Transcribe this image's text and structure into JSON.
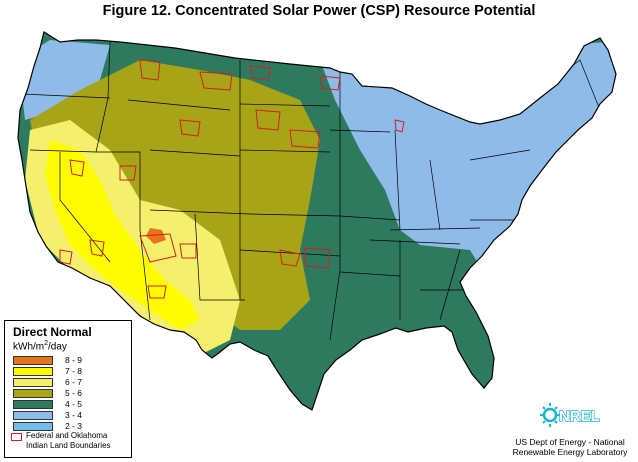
{
  "figure": {
    "title": "Figure 12.  Concentrated Solar Power (CSP) Resource Potential"
  },
  "map": {
    "colors": {
      "c89": "#e8731e",
      "c78": "#fffb00",
      "c67": "#f4f06e",
      "c56": "#a8a418",
      "c45": "#2d7a5e",
      "c34": "#8fbbe8",
      "c23": "#6fbde8",
      "ocean": "#ffffff",
      "boundary": "#d21f1f",
      "border": "#000000"
    }
  },
  "legend": {
    "title": "Direct Normal",
    "unit_prefix": "kWh/m",
    "unit_sup": "2",
    "unit_suffix": "/day",
    "items": [
      {
        "label": "8 - 9",
        "color": "#e8731e"
      },
      {
        "label": "7 - 8",
        "color": "#fffb00"
      },
      {
        "label": "6 - 7",
        "color": "#f4f06e"
      },
      {
        "label": "5 - 6",
        "color": "#a8a418"
      },
      {
        "label": "4 - 5",
        "color": "#2d7a5e"
      },
      {
        "label": "3 - 4",
        "color": "#8fbbe8"
      },
      {
        "label": "2 - 3",
        "color": "#6fbde8"
      }
    ],
    "boundary_label_1": "Federal and Oklahoma",
    "boundary_label_2": "Indian Land Boundaries"
  },
  "logo": {
    "text": "NREL"
  },
  "credit": {
    "line1": "US Dept of Energy - National",
    "line2": "Renewable Energy Laboratory"
  }
}
